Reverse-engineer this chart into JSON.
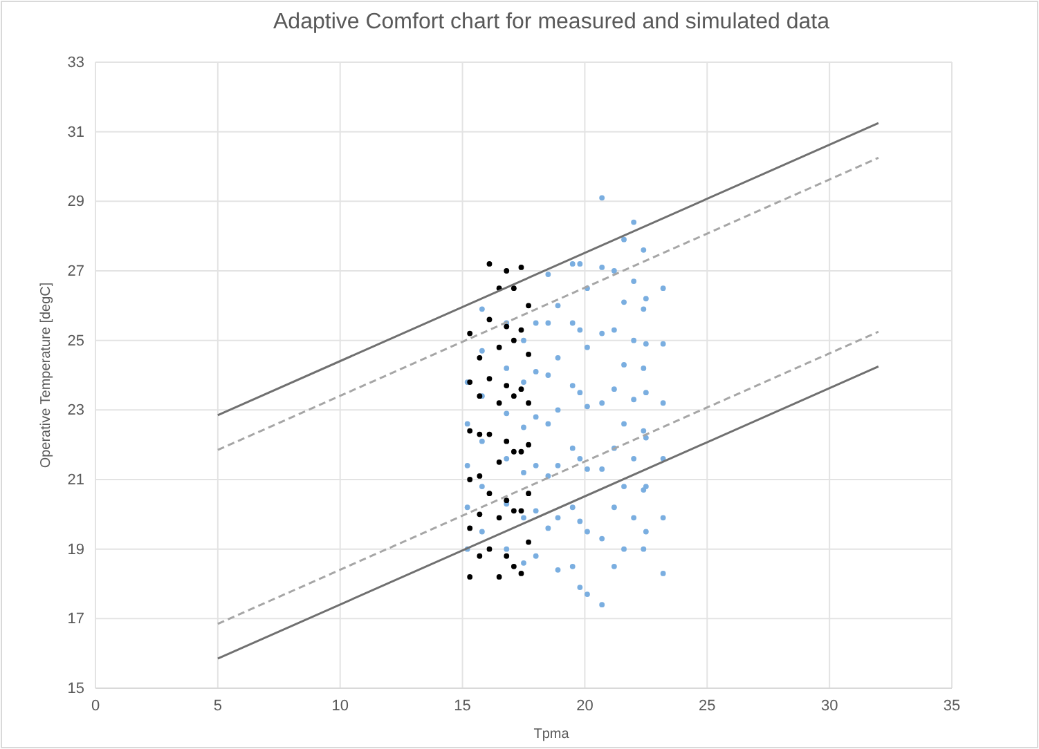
{
  "chart_data": {
    "type": "scatter",
    "title": "Adaptive Comfort chart for measured and simulated data",
    "xlabel": "Tpma",
    "ylabel": "Operative Temperature [degC]",
    "xlim": [
      0,
      35
    ],
    "xticks": [
      0,
      5,
      10,
      15,
      20,
      25,
      30,
      35
    ],
    "ylim": [
      15,
      33
    ],
    "yticks": [
      15,
      17,
      19,
      21,
      23,
      25,
      27,
      29,
      31,
      33
    ],
    "grid": true,
    "marker": "circle",
    "series": [
      {
        "color": "#7aaee0",
        "x": [
          15.2,
          15.2,
          15.2,
          15.2,
          15.2,
          15.8,
          15.8,
          15.8,
          15.8,
          15.8,
          15.8,
          16.8,
          16.8,
          16.8,
          16.8,
          16.8,
          16.8,
          17.5,
          17.5,
          17.5,
          17.5,
          17.5,
          17.5,
          18.0,
          18.0,
          18.0,
          18.0,
          18.0,
          18.0,
          18.5,
          18.5,
          18.5,
          18.5,
          18.5,
          18.5,
          18.9,
          18.9,
          18.9,
          18.9,
          18.9,
          18.9,
          19.5,
          19.5,
          19.5,
          19.5,
          19.5,
          19.5,
          19.8,
          19.8,
          19.8,
          19.8,
          19.8,
          19.8,
          20.1,
          20.1,
          20.1,
          20.1,
          20.1,
          20.1,
          20.7,
          20.7,
          20.7,
          20.7,
          20.7,
          20.7,
          20.7,
          21.2,
          21.2,
          21.2,
          21.2,
          21.2,
          21.2,
          21.6,
          21.6,
          21.6,
          21.6,
          21.6,
          21.6,
          22.0,
          22.0,
          22.0,
          22.0,
          22.0,
          22.0,
          22.4,
          22.4,
          22.4,
          22.4,
          22.4,
          22.4,
          22.5,
          22.5,
          22.5,
          22.5,
          22.5,
          22.5,
          23.2,
          23.2,
          23.2,
          23.2,
          23.2,
          23.2
        ],
        "values": [
          19.0,
          20.2,
          21.4,
          22.6,
          23.8,
          19.5,
          20.8,
          22.1,
          23.4,
          24.7,
          25.9,
          19.0,
          20.3,
          21.6,
          22.9,
          24.2,
          25.5,
          18.6,
          19.9,
          21.2,
          22.5,
          23.8,
          25.0,
          18.8,
          20.1,
          21.4,
          22.8,
          24.1,
          25.5,
          19.6,
          21.1,
          22.6,
          24.0,
          25.5,
          26.9,
          18.4,
          19.9,
          21.4,
          23.0,
          24.5,
          26.0,
          18.5,
          20.2,
          21.9,
          23.7,
          25.5,
          27.2,
          17.9,
          19.8,
          21.6,
          23.5,
          25.3,
          27.2,
          17.7,
          19.5,
          21.3,
          23.1,
          24.8,
          26.5,
          17.4,
          19.3,
          21.3,
          23.2,
          25.2,
          27.1,
          29.1,
          18.5,
          20.2,
          21.9,
          23.6,
          25.3,
          27.0,
          19.0,
          20.8,
          22.6,
          24.3,
          26.1,
          27.9,
          19.9,
          21.6,
          23.3,
          25.0,
          26.7,
          28.4,
          19.0,
          20.7,
          22.4,
          24.2,
          25.9,
          27.6,
          19.5,
          20.8,
          22.2,
          23.5,
          24.9,
          26.2,
          18.3,
          19.9,
          21.6,
          23.2,
          24.9,
          26.5
        ]
      },
      {
        "color": "#000000",
        "x": [
          15.3,
          15.3,
          15.3,
          15.3,
          15.3,
          15.3,
          15.7,
          15.7,
          15.7,
          15.7,
          15.7,
          15.7,
          16.1,
          16.1,
          16.1,
          16.1,
          16.1,
          16.1,
          16.5,
          16.5,
          16.5,
          16.5,
          16.5,
          16.5,
          16.8,
          16.8,
          16.8,
          16.8,
          16.8,
          16.8,
          17.1,
          17.1,
          17.1,
          17.1,
          17.1,
          17.1,
          17.4,
          17.4,
          17.4,
          17.4,
          17.4,
          17.4,
          17.7,
          17.7,
          17.7,
          17.7,
          17.7,
          17.7
        ],
        "values": [
          18.2,
          19.6,
          21.0,
          22.4,
          23.8,
          25.2,
          18.8,
          20.0,
          21.1,
          22.3,
          23.4,
          24.5,
          19.0,
          20.6,
          22.3,
          23.9,
          25.6,
          27.2,
          18.2,
          19.9,
          21.5,
          23.2,
          24.8,
          26.5,
          18.8,
          20.4,
          22.1,
          23.7,
          25.4,
          27.0,
          18.5,
          20.1,
          21.8,
          23.4,
          25.0,
          26.5,
          18.3,
          20.1,
          21.8,
          23.6,
          25.3,
          27.1,
          19.2,
          20.6,
          22.0,
          23.2,
          24.6,
          26.0
        ]
      },
      {
        "type": "line",
        "color": "#707070",
        "line_style": "solid",
        "marker": "none",
        "x": [
          5,
          32
        ],
        "values": [
          22.85,
          31.25
        ]
      },
      {
        "type": "line",
        "color": "#a6a6a6",
        "line_style": "dashed",
        "marker": "none",
        "x": [
          5,
          32
        ],
        "values": [
          21.85,
          30.25
        ]
      },
      {
        "type": "line",
        "color": "#a6a6a6",
        "line_style": "dashed",
        "marker": "none",
        "x": [
          5,
          32
        ],
        "values": [
          16.85,
          25.25
        ]
      },
      {
        "type": "line",
        "color": "#707070",
        "line_style": "solid",
        "marker": "none",
        "x": [
          5,
          32
        ],
        "values": [
          15.85,
          24.25
        ]
      }
    ]
  }
}
